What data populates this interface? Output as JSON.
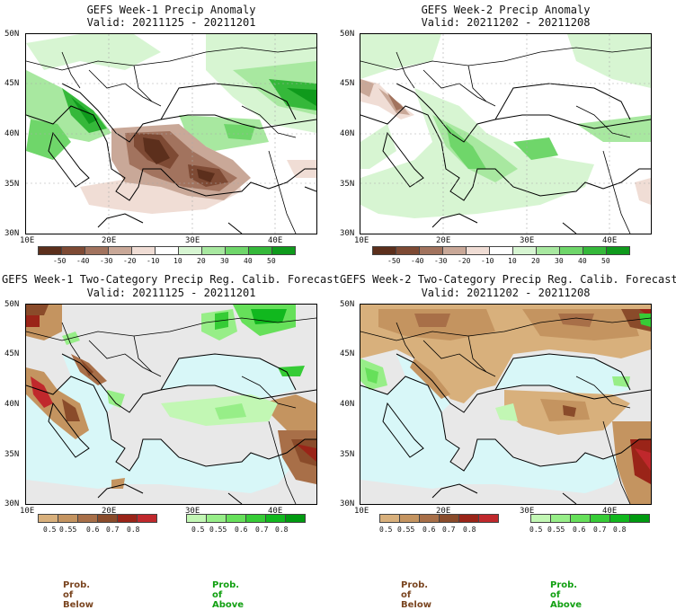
{
  "panels": [
    {
      "title": "GEFS Week-1 Precip Anomaly",
      "valid": "Valid: 20211125 - 20211201"
    },
    {
      "title": "GEFS Week-2 Precip Anomaly",
      "valid": "Valid: 20211202 - 20211208"
    },
    {
      "title": "GEFS Week-1 Two-Category Precip Reg. Calib. Forecast",
      "valid": "Valid: 20211125 - 20211201"
    },
    {
      "title": "GEFS Week-2 Two-Category Precip Reg. Calib. Forecast",
      "valid": "Valid: 20211202 - 20211208"
    }
  ],
  "lat_labels_top": [
    "50N",
    "45N",
    "40N",
    "35N",
    "30N"
  ],
  "lat_labels_bottom": [
    "50N",
    "45N",
    "40N",
    "35N",
    "30N"
  ],
  "lon_labels": [
    "10E",
    "20E",
    "30E",
    "40E"
  ],
  "anomaly_colorbar": {
    "labels": [
      "-50",
      "-40",
      "-30",
      "-20",
      "-10",
      "10",
      "20",
      "30",
      "40",
      "50"
    ],
    "colors": [
      "#5c2f1c",
      "#7e4a34",
      "#a2735e",
      "#c9a898",
      "#f0ddd5",
      "#ffffff",
      "#d7f5d2",
      "#a8e8a0",
      "#6fd66a",
      "#35b83a",
      "#0f9a1c"
    ]
  },
  "below_colorbar": {
    "labels": [
      "0.5",
      "0.55",
      "0.6",
      "0.7",
      "0.8"
    ],
    "colors": [
      "#d8b07c",
      "#c49460",
      "#a86f48",
      "#8a4b2a",
      "#9a2418",
      "#c0282c"
    ]
  },
  "above_colorbar": {
    "labels": [
      "0.5",
      "0.55",
      "0.6",
      "0.7",
      "0.8"
    ],
    "colors": [
      "#c2f7b4",
      "#97ee88",
      "#66e05a",
      "#36cc36",
      "#11b81e",
      "#009a10"
    ]
  },
  "prob_below_label": "Prob. of Below",
  "prob_above_label": "Prob. of Above",
  "colors": {
    "sea_prob": "#d8f7f8",
    "land_gray": "#e8e8e8",
    "prob_below_text": "#7a4520",
    "prob_above_text": "#12a012"
  }
}
